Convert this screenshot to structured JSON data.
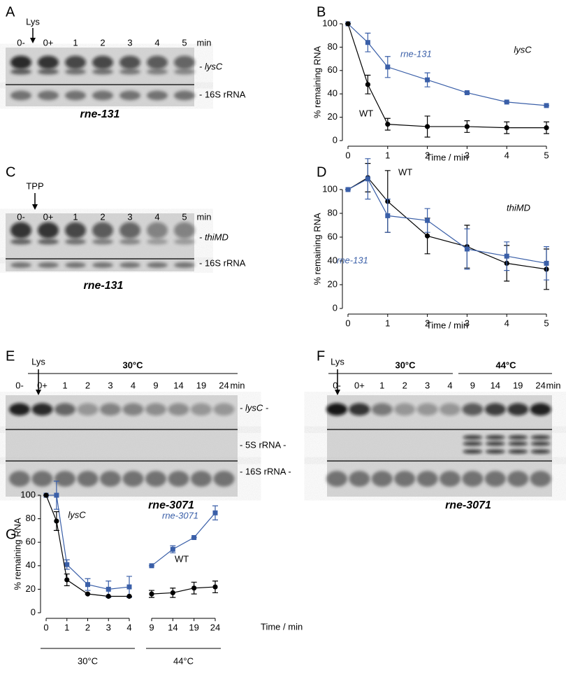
{
  "panel_labels": [
    "A",
    "B",
    "C",
    "D",
    "E",
    "F",
    "G"
  ],
  "blots": [
    {
      "treatment": "Lys",
      "lanes": [
        "0-",
        "0+",
        "1",
        "2",
        "3",
        "4",
        "5"
      ],
      "unit": "min",
      "bands": [
        "- lysC",
        "- 16S rRNA"
      ],
      "strain": "rne-131"
    },
    {
      "treatment": "TPP",
      "lanes": [
        "0-",
        "0+",
        "1",
        "2",
        "3",
        "4",
        "5"
      ],
      "unit": "min",
      "bands": [
        "- thiMD",
        "- 16S rRNA"
      ],
      "strain": "rne-131"
    },
    {
      "treatment": "Lys",
      "temps": [
        "30°C"
      ],
      "lanes": [
        "0-",
        "0+",
        "1",
        "2",
        "3",
        "4",
        "9",
        "14",
        "19",
        "24"
      ],
      "unit": "min",
      "bands": [
        "- lysC -",
        "- 5S rRNA -",
        "- 16S rRNA -"
      ],
      "strain": "rne-3071"
    },
    {
      "treatment": "Lys",
      "temps": [
        "30°C",
        "44°C"
      ],
      "lanes": [
        "0-",
        "0+",
        "1",
        "2",
        "3",
        "4",
        "9",
        "14",
        "19",
        "24"
      ],
      "unit": "min",
      "strain": "rne-3071"
    }
  ],
  "chart_data": [
    {
      "type": "line",
      "title": "lysC",
      "xlabel": "Time / min",
      "ylabel": "% remaining RNA",
      "x": [
        0,
        0.5,
        1,
        2,
        3,
        4,
        5
      ],
      "xlim": [
        0,
        5
      ],
      "xticks": [
        0,
        1,
        2,
        3,
        4,
        5
      ],
      "ylim": [
        0,
        100
      ],
      "yticks": [
        0,
        20,
        40,
        60,
        80,
        100
      ],
      "series": [
        {
          "name": "rne-131",
          "color": "#3a5fa8",
          "marker": "square",
          "values": [
            100,
            84,
            63,
            52,
            41,
            33,
            30
          ],
          "errors": [
            0,
            8,
            9,
            6,
            0,
            0,
            0
          ]
        },
        {
          "name": "WT",
          "color": "#000000",
          "marker": "circle",
          "values": [
            100,
            48,
            14,
            12,
            12,
            11,
            11
          ],
          "errors": [
            0,
            8,
            5,
            9,
            5,
            5,
            5
          ]
        }
      ]
    },
    {
      "type": "line",
      "title": "thiMD",
      "xlabel": "Time / min",
      "ylabel": "% remaining RNA",
      "x": [
        0,
        0.5,
        1,
        2,
        3,
        4,
        5
      ],
      "xlim": [
        0,
        5
      ],
      "xticks": [
        0,
        1,
        2,
        3,
        4,
        5
      ],
      "ylim": [
        0,
        100
      ],
      "yticks": [
        0,
        20,
        40,
        60,
        80,
        100
      ],
      "series": [
        {
          "name": "WT",
          "color": "#000000",
          "marker": "circle",
          "values": [
            100,
            110,
            90,
            61,
            52,
            38,
            33
          ],
          "errors": [
            0,
            12,
            26,
            15,
            18,
            15,
            17
          ]
        },
        {
          "name": "rne-131",
          "color": "#3a5fa8",
          "marker": "square",
          "values": [
            100,
            109,
            78,
            74,
            50,
            44,
            38
          ],
          "errors": [
            0,
            17,
            14,
            10,
            17,
            12,
            14
          ]
        }
      ]
    },
    {
      "type": "line",
      "title": "lysC",
      "xlabel": "Time / min",
      "ylabel": "% remaining RNA",
      "x": [
        0,
        0.5,
        1,
        2,
        3,
        4,
        9,
        14,
        19,
        24
      ],
      "xsegments": [
        [
          0,
          4
        ],
        [
          9,
          24
        ]
      ],
      "segment_labels": [
        "30°C",
        "44°C"
      ],
      "xticks": [
        0,
        1,
        2,
        3,
        4,
        9,
        14,
        19,
        24
      ],
      "ylim": [
        0,
        100
      ],
      "yticks": [
        0,
        20,
        40,
        60,
        80,
        100
      ],
      "series": [
        {
          "name": "rne-3071",
          "color": "#3a5fa8",
          "marker": "square",
          "values": [
            100,
            100,
            41,
            24,
            20,
            22,
            40,
            54,
            64,
            85
          ],
          "errors": [
            0,
            12,
            4,
            5,
            7,
            9,
            0,
            3,
            0,
            6
          ]
        },
        {
          "name": "WT",
          "color": "#000000",
          "marker": "circle",
          "values": [
            100,
            78,
            28,
            16,
            14,
            14,
            16,
            17,
            21,
            22
          ],
          "errors": [
            0,
            8,
            5,
            0,
            0,
            0,
            3,
            4,
            5,
            5
          ]
        }
      ]
    }
  ]
}
